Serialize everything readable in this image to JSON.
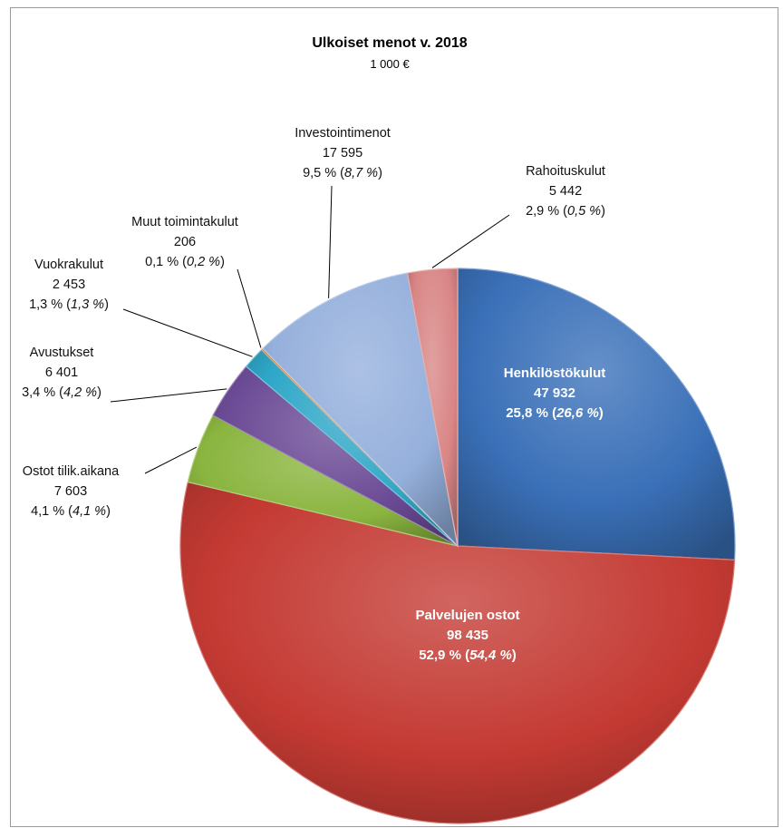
{
  "chart_data": {
    "type": "pie",
    "title": "Ulkoiset menot v. 2018",
    "subtitle": "1 000 €",
    "slices": [
      {
        "name": "Henkilöstökulut",
        "value": "47 932",
        "percent": "25,8 %",
        "prev_percent": "26,6 %",
        "share": 25.8,
        "color": "#3a70b8",
        "label_inside": true
      },
      {
        "name": "Palvelujen ostot",
        "value": "98 435",
        "percent": "52,9 %",
        "prev_percent": "54,4 %",
        "share": 52.9,
        "color": "#c43a33",
        "label_inside": true
      },
      {
        "name": "Ostot tilik.aikana",
        "value": "7 603",
        "percent": "4,1 %",
        "prev_percent": "4,1 %",
        "share": 4.1,
        "color": "#8ab53f",
        "label_inside": false
      },
      {
        "name": "Avustukset",
        "value": "6 401",
        "percent": "3,4 %",
        "prev_percent": "4,2 %",
        "share": 3.4,
        "color": "#6c4b96",
        "label_inside": false
      },
      {
        "name": "Vuokrakulut",
        "value": "2 453",
        "percent": "1,3 %",
        "prev_percent": "1,3 %",
        "share": 1.3,
        "color": "#2fa7c8",
        "label_inside": false
      },
      {
        "name": "Muut toimintakulut",
        "value": "206",
        "percent": "0,1 %",
        "prev_percent": "0,2 %",
        "share": 0.1,
        "color": "#e07e2a",
        "label_inside": false
      },
      {
        "name": "Investointimenot",
        "value": "17 595",
        "percent": "9,5 %",
        "prev_percent": "8,7 %",
        "share": 9.5,
        "color": "#95b0dc",
        "label_inside": false
      },
      {
        "name": "Rahoituskulut",
        "value": "5 442",
        "percent": "2,9 %",
        "prev_percent": "0,5 %",
        "share": 2.9,
        "color": "#d98585",
        "label_inside": false
      }
    ]
  }
}
